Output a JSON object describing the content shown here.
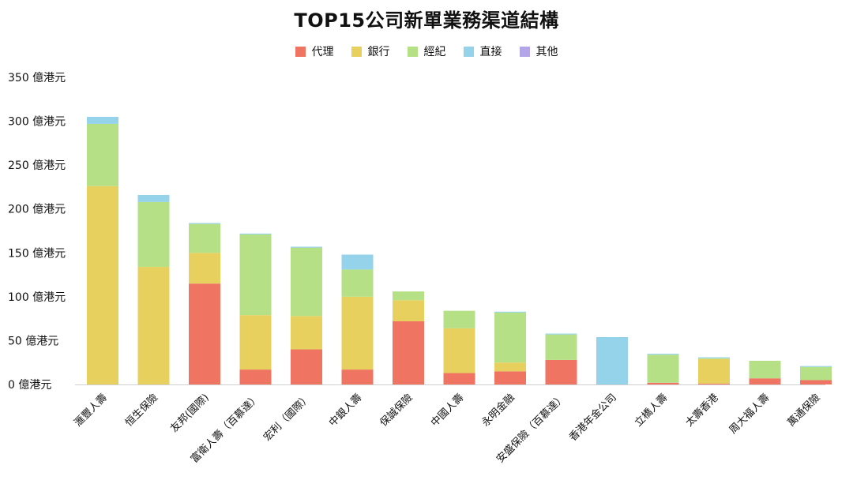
{
  "chart_data": {
    "type": "bar",
    "stacked": true,
    "title": "TOP15公司新單業務渠道結構",
    "y_unit": "億港元",
    "ylim": [
      0,
      350
    ],
    "yticks": [
      0,
      50,
      100,
      150,
      200,
      250,
      300,
      350
    ],
    "grid": false,
    "legend_position": "top-center",
    "categories": [
      "滙豐人壽",
      "恒生保險",
      "友邦(國際)",
      "富衛人壽（百慕達）",
      "宏利（國際）",
      "中銀人壽",
      "保誠保險",
      "中國人壽",
      "永明金融",
      "安盛保險（百慕達）",
      "香港年金公司",
      "立橋人壽",
      "太壽香港",
      "周大福人壽",
      "萬通保險"
    ],
    "series": [
      {
        "name": "代理",
        "color": "#ef7462",
        "values": [
          0,
          0,
          115,
          17,
          40,
          17,
          72,
          13,
          15,
          28,
          0,
          2,
          1,
          7,
          5
        ]
      },
      {
        "name": "銀行",
        "color": "#e8d05e",
        "values": [
          226,
          134,
          35,
          62,
          38,
          83,
          24,
          51,
          10,
          0,
          0,
          0,
          28,
          0,
          0
        ]
      },
      {
        "name": "經紀",
        "color": "#b5e086",
        "values": [
          71,
          74,
          33,
          92,
          78,
          31,
          10,
          20,
          57,
          29,
          0,
          32,
          1,
          20,
          15
        ]
      },
      {
        "name": "直接",
        "color": "#94d3ea",
        "values": [
          8,
          8,
          1,
          1,
          1,
          17,
          0,
          0,
          1,
          1,
          54,
          1,
          1,
          0,
          1
        ]
      },
      {
        "name": "其他",
        "color": "#b3a6e8",
        "values": [
          0,
          0,
          0,
          0,
          0,
          0,
          0,
          0,
          0,
          0,
          0,
          0,
          0,
          0,
          0
        ]
      }
    ]
  }
}
